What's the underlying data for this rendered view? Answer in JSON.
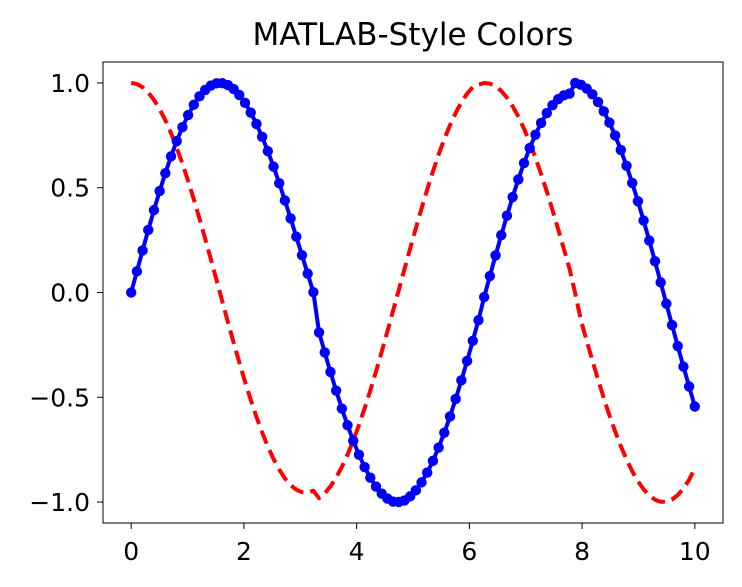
{
  "chart_data": {
    "type": "line",
    "title": "MATLAB-Style Colors",
    "xlabel": "",
    "ylabel": "",
    "xlim": [
      -0.5,
      10.5
    ],
    "ylim": [
      -1.1,
      1.1
    ],
    "x_ticks": [
      0,
      2,
      4,
      6,
      8,
      10
    ],
    "x_tick_labels": [
      "0",
      "2",
      "4",
      "6",
      "8",
      "10"
    ],
    "y_ticks": [
      -1.0,
      -0.5,
      0.0,
      0.5,
      1.0
    ],
    "y_tick_labels": [
      "−1.0",
      "−0.5",
      "0.0",
      "0.5",
      "1.0"
    ],
    "grid": false,
    "legend": "none",
    "x": [
      0.0,
      0.10101,
      0.20202,
      0.30303,
      0.40404,
      0.505051,
      0.606061,
      0.707071,
      0.808081,
      0.909091,
      1.010101,
      1.111111,
      1.212121,
      1.313131,
      1.414141,
      1.515152,
      1.616162,
      1.717172,
      1.818182,
      1.919192,
      2.020202,
      2.121212,
      2.222222,
      2.323232,
      2.424242,
      2.525253,
      2.626263,
      2.727273,
      2.828283,
      2.929293,
      3.030303,
      3.131313,
      3.232323,
      3.333333,
      3.434343,
      3.535354,
      3.636364,
      3.737374,
      3.838384,
      3.939394,
      4.040404,
      4.141414,
      4.242424,
      4.343434,
      4.444444,
      4.545455,
      4.646465,
      4.747475,
      4.848485,
      4.949495,
      5.050505,
      5.151515,
      5.252525,
      5.353535,
      5.454545,
      5.555556,
      5.656566,
      5.757576,
      5.858586,
      5.959596,
      6.060606,
      6.161616,
      6.262626,
      6.363636,
      6.464646,
      6.565657,
      6.666667,
      6.767677,
      6.868687,
      6.969697,
      7.070707,
      7.171717,
      7.272727,
      7.373737,
      7.474747,
      7.575758,
      7.676768,
      7.777778,
      7.878788,
      7.979798,
      8.080808,
      8.181818,
      8.282828,
      8.383838,
      8.484848,
      8.585859,
      8.686869,
      8.787879,
      8.888889,
      8.989899,
      9.090909,
      9.191919,
      9.292929,
      9.393939,
      9.494949,
      9.59596,
      9.69697,
      9.79798,
      9.89899,
      10.0
    ],
    "series": [
      {
        "function": "sin",
        "color": "#0000ff",
        "line_style": "solid",
        "marker": "circle",
        "values": [
          0.0,
          0.100838,
          0.200649,
          0.298414,
          0.393137,
          0.483852,
          0.56963,
          0.649592,
          0.722918,
          0.788858,
          0.846741,
          0.895982,
          0.936091,
          0.96668,
          0.98747,
          0.998291,
          0.999087,
          0.98992,
          0.970961,
          0.942496,
          0.904914,
          0.858706,
          0.804462,
          0.742861,
          0.674667,
          0.600717,
          0.521915,
          0.43922,
          0.353636,
          0.266201,
          0.177978,
          0.090045,
          0.001376,
          -0.190568,
          -0.285997,
          -0.378998,
          -0.468557,
          -0.553707,
          -0.633537,
          -0.707202,
          -0.773933,
          -0.833047,
          -0.883958,
          -0.926185,
          -0.959363,
          -0.983241,
          -0.997704,
          -0.999834,
          -0.992089,
          -0.972934,
          -0.944218,
          -0.906165,
          -0.859124,
          -0.803542,
          -0.739959,
          -0.669,
          -0.591372,
          -0.507852,
          -0.419275,
          -0.326522,
          -0.230518,
          -0.132219,
          -0.021437,
          0.078361,
          0.176955,
          0.273351,
          0.366561,
          0.455639,
          0.53967,
          0.617786,
          0.689187,
          0.753148,
          0.809005,
          0.856155,
          0.894097,
          0.922419,
          0.940806,
          0.949034,
          0.999988,
          0.991064,
          0.973217,
          0.945975,
          0.909598,
          0.864468,
          0.810932,
          0.749434,
          0.680504,
          0.604748,
          0.522843,
          0.435522,
          0.343567,
          0.247802,
          0.149083,
          0.048297,
          -0.053661,
          -0.155283,
          -0.255624,
          -0.353713,
          -0.44861,
          -0.544021
        ]
      },
      {
        "function": "cos",
        "color": "#ff0000",
        "line_style": "dashed",
        "marker": "none",
        "values": [
          1.0,
          0.994903,
          0.979663,
          0.954437,
          0.919484,
          0.875169,
          0.821954,
          0.760396,
          0.691134,
          0.614885,
          0.532432,
          0.444621,
          0.35235,
          0.256556,
          0.158209,
          0.058298,
          -0.042162,
          -0.141795,
          -0.239593,
          -0.334578,
          -0.425787,
          -0.512291,
          -0.593199,
          -0.667671,
          -0.734929,
          -0.794269,
          -0.84506,
          -0.886752,
          -0.918892,
          -0.941113,
          -0.953132,
          -0.954762,
          -0.945908,
          -0.981719,
          -0.958194,
          -0.925396,
          -0.883432,
          -0.832691,
          -0.773624,
          -0.706839,
          -0.633122,
          -0.552935,
          -0.467589,
          -0.377152,
          -0.282928,
          -0.185988,
          -0.087442,
          0.011706,
          0.111133,
          0.209933,
          0.306942,
          0.401286,
          0.491882,
          0.577753,
          0.658014,
          0.731877,
          0.798571,
          0.857394,
          0.907732,
          0.948989,
          0.98068,
          0.99239,
          0.99977,
          0.996925,
          0.984219,
          0.96182,
          0.930023,
          0.889124,
          0.839524,
          0.781752,
          0.716394,
          0.644105,
          0.565663,
          0.481917,
          0.393769,
          0.302193,
          0.208201,
          0.112851,
          -0.004969,
          -0.133418,
          -0.229844,
          -0.324197,
          -0.415571,
          -0.503144,
          -0.585998,
          -0.662344,
          -0.732766,
          -0.796411,
          -0.852451,
          -0.900169,
          -0.939062,
          -0.968689,
          -0.988828,
          -0.998833,
          -0.998559,
          -0.987889,
          -0.966834,
          -0.935432,
          -0.893826,
          -0.839072
        ]
      }
    ]
  }
}
